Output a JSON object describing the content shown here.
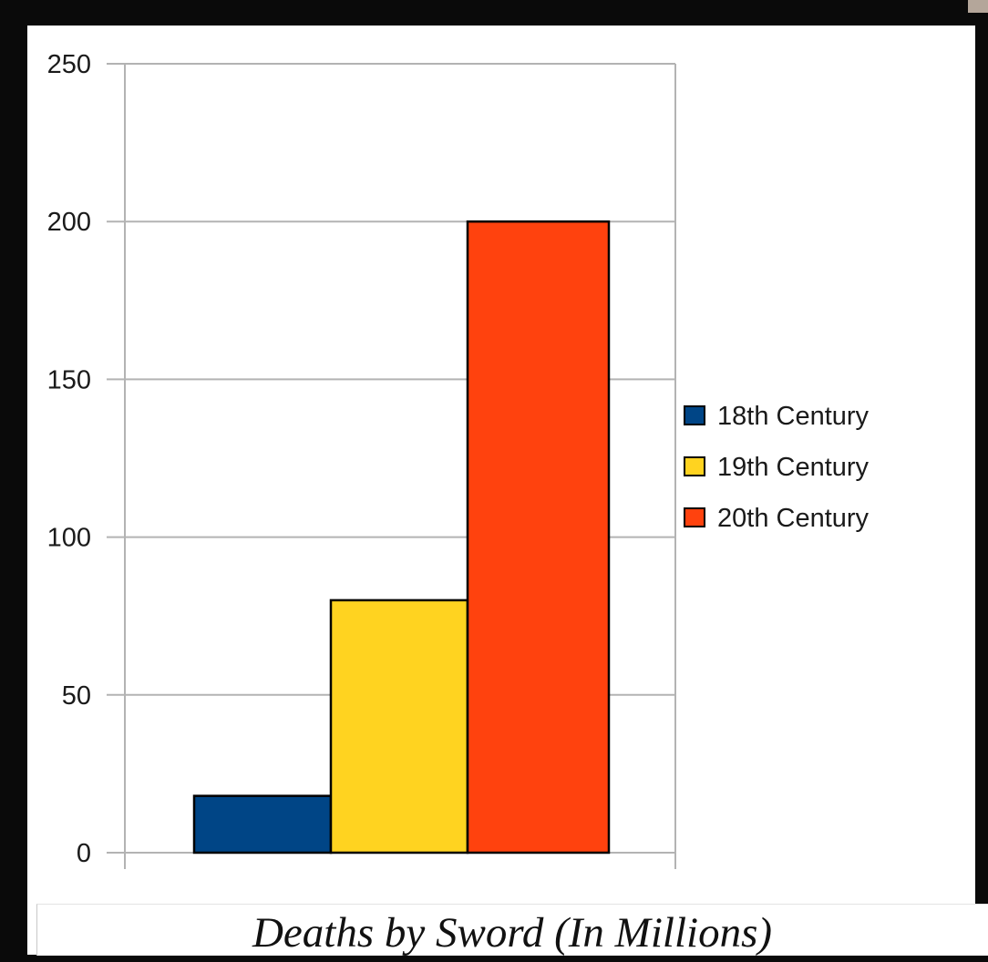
{
  "chart_data": {
    "type": "bar",
    "title": "",
    "xlabel": "",
    "ylabel": "",
    "ylim": [
      0,
      250
    ],
    "yticks": [
      0,
      50,
      100,
      150,
      200,
      250
    ],
    "grid": true,
    "legend_position": "right",
    "series": [
      {
        "name": "18th Century",
        "value": 18,
        "color": "#004586"
      },
      {
        "name": "19th Century",
        "value": 80,
        "color": "#ffd320"
      },
      {
        "name": "20th Century",
        "value": 200,
        "color": "#ff420e"
      }
    ]
  },
  "caption": "Deaths by Sword (In Millions)"
}
